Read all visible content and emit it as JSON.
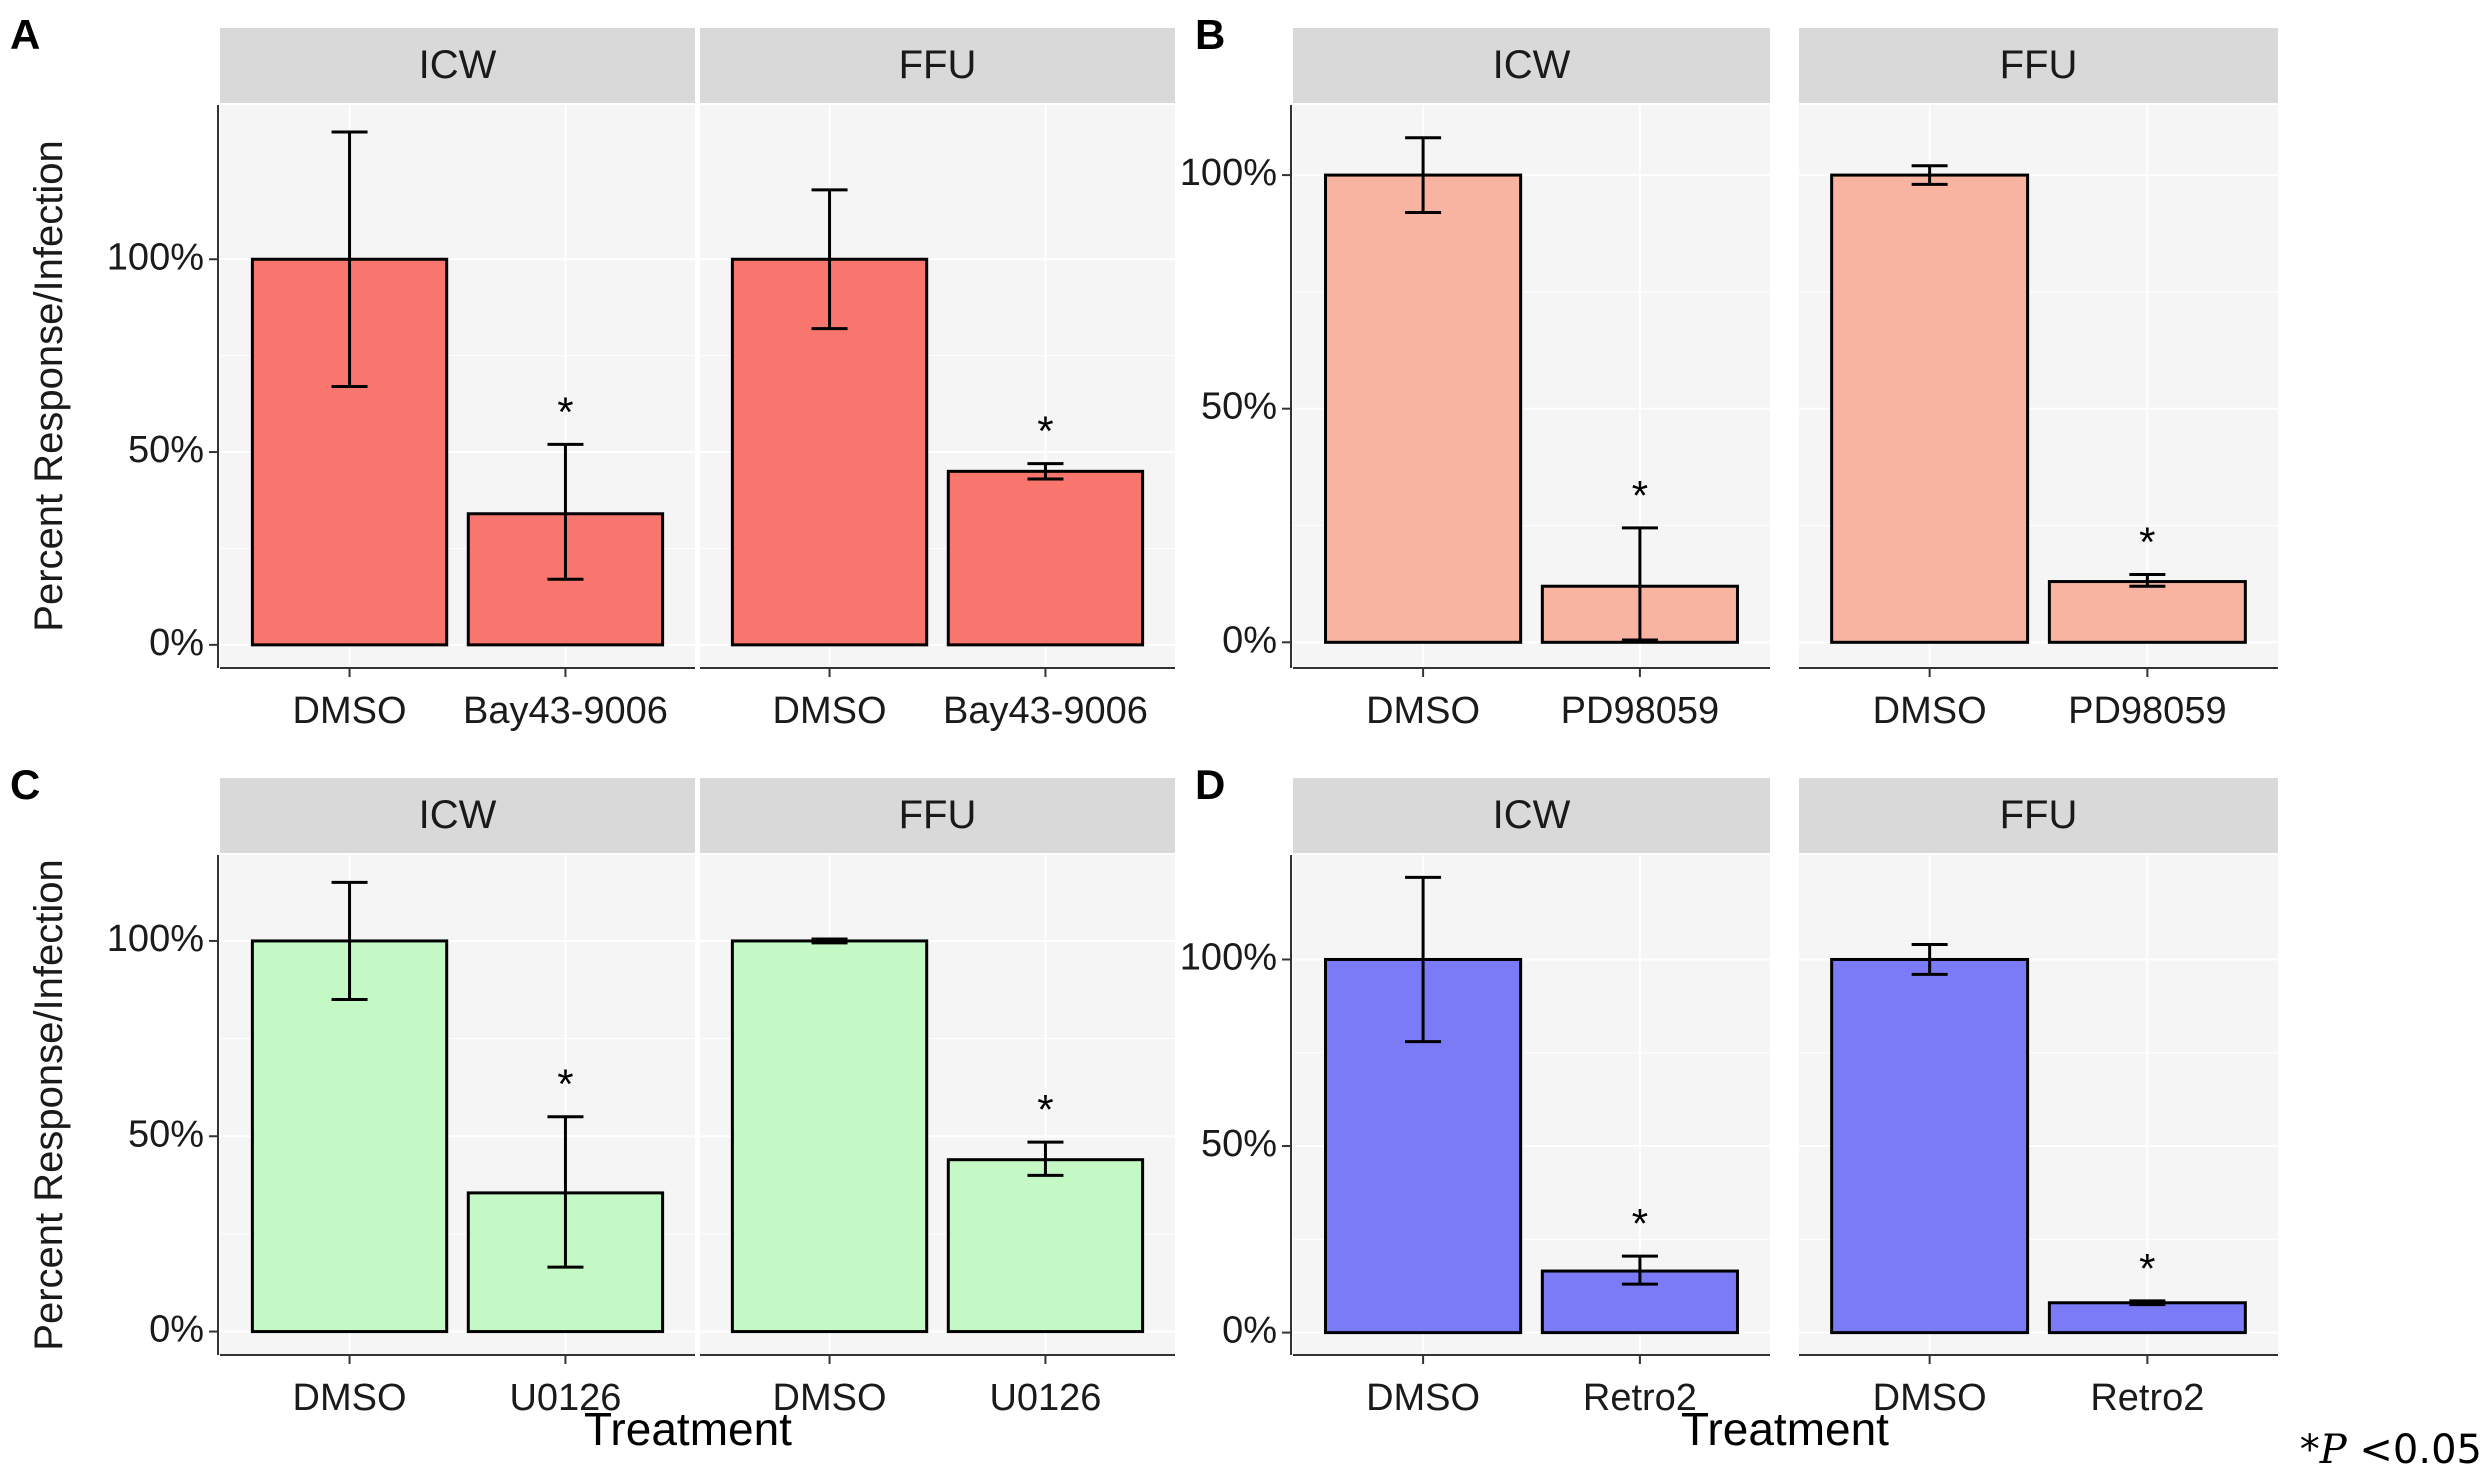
{
  "footnote": {
    "star": "*",
    "p": "P",
    "rest": " <0.05"
  },
  "chart_data": [
    {
      "panel": "A",
      "type": "bar",
      "ylabel": "Percent Response/Infection",
      "xlabel": "",
      "yticks": [
        "0%",
        "50%",
        "100%"
      ],
      "ytick_values": [
        0,
        50,
        100
      ],
      "ylim": [
        -6,
        140
      ],
      "color": "#F8766D",
      "facets": [
        {
          "strip": "ICW",
          "categories": [
            "DMSO",
            "Bay43-9006"
          ],
          "values": [
            100,
            34
          ],
          "err_low": [
            67,
            17
          ],
          "err_high": [
            133,
            52
          ],
          "significant": [
            false,
            true
          ]
        },
        {
          "strip": "FFU",
          "categories": [
            "DMSO",
            "Bay43-9006"
          ],
          "values": [
            100,
            45
          ],
          "err_low": [
            82,
            43
          ],
          "err_high": [
            118,
            47
          ],
          "significant": [
            false,
            true
          ]
        }
      ]
    },
    {
      "panel": "B",
      "type": "bar",
      "ylabel": "",
      "xlabel": "",
      "yticks": [
        "0%",
        "50%",
        "100%"
      ],
      "ytick_values": [
        0,
        50,
        100
      ],
      "ylim": [
        -5.5,
        115
      ],
      "color": "#F8B4A0",
      "facets": [
        {
          "strip": "ICW",
          "categories": [
            "DMSO",
            "PD98059"
          ],
          "values": [
            100,
            12
          ],
          "err_low": [
            92,
            0.5
          ],
          "err_high": [
            108,
            24.5
          ],
          "significant": [
            false,
            true
          ]
        },
        {
          "strip": "FFU",
          "categories": [
            "DMSO",
            "PD98059"
          ],
          "values": [
            100,
            13
          ],
          "err_low": [
            98,
            12
          ],
          "err_high": [
            102,
            14.5
          ],
          "significant": [
            false,
            true
          ]
        }
      ]
    },
    {
      "panel": "C",
      "type": "bar",
      "ylabel": "Percent Response/Infection",
      "xlabel": "Treatment",
      "yticks": [
        "0%",
        "50%",
        "100%"
      ],
      "ytick_values": [
        0,
        50,
        100
      ],
      "ylim": [
        -6,
        122
      ],
      "color": "#C4F8C4",
      "facets": [
        {
          "strip": "ICW",
          "categories": [
            "DMSO",
            "U0126"
          ],
          "values": [
            100,
            35.5
          ],
          "err_low": [
            85,
            16.5
          ],
          "err_high": [
            115,
            55
          ],
          "significant": [
            false,
            true
          ]
        },
        {
          "strip": "FFU",
          "categories": [
            "DMSO",
            "U0126"
          ],
          "values": [
            100,
            44
          ],
          "err_low": [
            99.5,
            40
          ],
          "err_high": [
            100.5,
            48.5
          ],
          "significant": [
            false,
            true
          ]
        }
      ]
    },
    {
      "panel": "D",
      "type": "bar",
      "ylabel": "",
      "xlabel": "Treatment",
      "yticks": [
        "0%",
        "50%",
        "100%"
      ],
      "ytick_values": [
        0,
        50,
        100
      ],
      "ylim": [
        -6,
        128
      ],
      "color": "#7B7BF8",
      "facets": [
        {
          "strip": "ICW",
          "categories": [
            "DMSO",
            "Retro2"
          ],
          "values": [
            100,
            16.5
          ],
          "err_low": [
            78,
            13
          ],
          "err_high": [
            122,
            20.5
          ],
          "significant": [
            false,
            true
          ]
        },
        {
          "strip": "FFU",
          "categories": [
            "DMSO",
            "Retro2"
          ],
          "values": [
            100,
            8
          ],
          "err_low": [
            96,
            7.5
          ],
          "err_high": [
            104,
            8.5
          ],
          "significant": [
            false,
            true
          ]
        }
      ]
    }
  ]
}
